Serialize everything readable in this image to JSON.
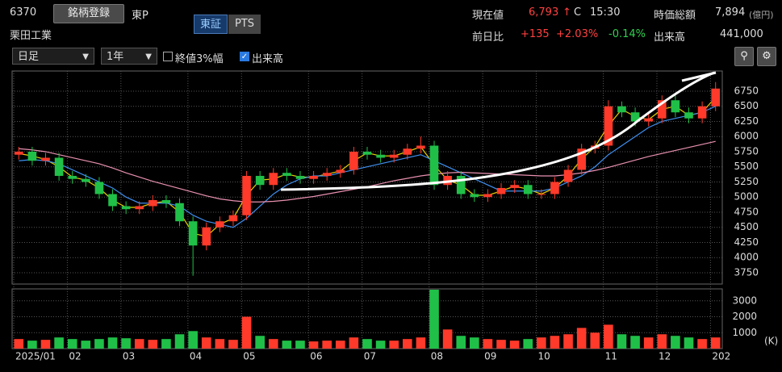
{
  "header": {
    "code": "6370",
    "register_button": "銘柄登録",
    "market": "東P",
    "exchange_tabs": [
      "東証",
      "PTS"
    ],
    "name": "栗田工業",
    "price_label": "現在値",
    "price": "6,793",
    "arrow": "↑",
    "price_flag": "C",
    "time": "15:30",
    "market_cap_label": "時価総額",
    "market_cap": "7,894",
    "market_cap_unit": "(億円)",
    "change_label": "前日比",
    "change": "+135",
    "change_pct": "+2.03%",
    "other_pct": "-0.14%",
    "volume_label": "出来高",
    "volume": "441,000"
  },
  "controls": {
    "interval": "日足",
    "period": "1年",
    "close_3pct": "終値3%幅",
    "show_volume": "出来高"
  },
  "chart_data": {
    "type": "candlestick",
    "categories": [
      "2025/01",
      null,
      null,
      null,
      "02",
      null,
      null,
      null,
      "03",
      null,
      null,
      null,
      null,
      "04",
      null,
      null,
      null,
      "05",
      null,
      null,
      null,
      null,
      "06",
      null,
      null,
      null,
      "07",
      null,
      null,
      null,
      null,
      "08",
      null,
      null,
      null,
      "09",
      null,
      null,
      null,
      "10",
      null,
      null,
      null,
      null,
      "11",
      null,
      null,
      null,
      "12",
      null,
      null,
      null,
      "202"
    ],
    "open": [
      5700,
      5750,
      5600,
      5650,
      5350,
      5300,
      5250,
      5050,
      4850,
      4800,
      4850,
      4950,
      4900,
      4600,
      4200,
      4500,
      4600,
      4700,
      5350,
      5200,
      5400,
      5350,
      5300,
      5350,
      5400,
      5450,
      5750,
      5700,
      5650,
      5700,
      5800,
      5850,
      5200,
      5350,
      5050,
      5000,
      5050,
      5150,
      5200,
      5050,
      5050,
      5250,
      5450,
      5800,
      5850,
      6500,
      6400,
      6250,
      6300,
      6600,
      6400,
      6300,
      6500
    ],
    "high": [
      5830,
      5830,
      5730,
      5730,
      5430,
      5380,
      5330,
      5130,
      4930,
      4930,
      5030,
      5030,
      4980,
      4680,
      4580,
      4680,
      4780,
      5430,
      5430,
      5480,
      5480,
      5430,
      5430,
      5480,
      5530,
      5830,
      5830,
      5780,
      5780,
      5880,
      6000,
      5930,
      5430,
      5430,
      5130,
      5130,
      5230,
      5280,
      5280,
      5130,
      5330,
      5530,
      5880,
      5930,
      6600,
      6580,
      6480,
      6380,
      6680,
      6680,
      6480,
      6580,
      6900
    ],
    "low": [
      5620,
      5520,
      5520,
      5270,
      5220,
      5170,
      4970,
      4770,
      4720,
      4720,
      4770,
      4820,
      4520,
      3700,
      4120,
      4420,
      4520,
      4620,
      5120,
      5120,
      5270,
      5220,
      5220,
      5270,
      5320,
      5370,
      5620,
      5570,
      5570,
      5620,
      5720,
      5120,
      5120,
      4970,
      4920,
      4920,
      4970,
      5070,
      4970,
      4970,
      4970,
      5170,
      5370,
      5720,
      5770,
      6320,
      6170,
      6170,
      6220,
      6320,
      6220,
      6220,
      6420
    ],
    "close": [
      5750,
      5600,
      5650,
      5350,
      5300,
      5250,
      5050,
      4850,
      4800,
      4850,
      4950,
      4900,
      4600,
      4200,
      4500,
      4600,
      4700,
      5350,
      5200,
      5400,
      5350,
      5300,
      5350,
      5400,
      5450,
      5750,
      5700,
      5650,
      5700,
      5800,
      5850,
      5200,
      5350,
      5050,
      5000,
      5050,
      5150,
      5200,
      5050,
      5050,
      5250,
      5450,
      5800,
      5850,
      6500,
      6400,
      6250,
      6300,
      6600,
      6400,
      6300,
      6500,
      6793
    ],
    "moving_averages": [
      {
        "color": "#e8d000",
        "values": [
          5720,
          5680,
          5620,
          5500,
          5330,
          5280,
          5150,
          4950,
          4830,
          4830,
          4900,
          4930,
          4750,
          4400,
          4350,
          4550,
          4650,
          5030,
          5280,
          5300,
          5380,
          5330,
          5330,
          5380,
          5430,
          5600,
          5730,
          5680,
          5680,
          5750,
          5830,
          5530,
          5280,
          5200,
          5030,
          5030,
          5100,
          5180,
          5130,
          5050,
          5150,
          5350,
          5630,
          5830,
          6180,
          6450,
          6330,
          6280,
          6450,
          6500,
          6350,
          6400,
          6650
        ]
      },
      {
        "color": "#3f8ff0",
        "values": [
          5600,
          5620,
          5600,
          5550,
          5450,
          5350,
          5250,
          5150,
          5000,
          4900,
          4900,
          4900,
          4850,
          4700,
          4600,
          4550,
          4500,
          4650,
          4850,
          5050,
          5200,
          5300,
          5350,
          5350,
          5400,
          5450,
          5500,
          5550,
          5600,
          5650,
          5700,
          5600,
          5500,
          5400,
          5300,
          5200,
          5100,
          5100,
          5100,
          5100,
          5150,
          5250,
          5350,
          5500,
          5700,
          5850,
          6000,
          6150,
          6250,
          6300,
          6350,
          6400,
          6500
        ]
      },
      {
        "color": "#e890b0",
        "values": [
          5800,
          5780,
          5750,
          5700,
          5650,
          5600,
          5550,
          5480,
          5400,
          5330,
          5260,
          5200,
          5140,
          5080,
          5020,
          4970,
          4940,
          4920,
          4920,
          4930,
          4950,
          4980,
          5010,
          5050,
          5090,
          5130,
          5170,
          5220,
          5270,
          5310,
          5350,
          5380,
          5400,
          5410,
          5400,
          5390,
          5380,
          5370,
          5360,
          5350,
          5350,
          5370,
          5400,
          5440,
          5490,
          5550,
          5610,
          5670,
          5720,
          5770,
          5820,
          5870,
          5920
        ]
      }
    ],
    "up_color": "#ff3a2a",
    "down_color": "#20c048",
    "ylim": [
      3563,
      7083
    ],
    "yticks": [
      3750,
      4000,
      4250,
      4500,
      4750,
      5000,
      5250,
      5500,
      5750,
      6000,
      6250,
      6500,
      6750
    ],
    "volume": [
      600,
      500,
      550,
      700,
      600,
      500,
      600,
      700,
      650,
      600,
      550,
      600,
      900,
      1100,
      700,
      600,
      550,
      2000,
      800,
      600,
      500,
      500,
      450,
      500,
      500,
      700,
      600,
      500,
      500,
      600,
      700,
      3700,
      1200,
      800,
      700,
      600,
      550,
      500,
      600,
      700,
      800,
      900,
      1300,
      1000,
      1500,
      900,
      800,
      700,
      900,
      800,
      700,
      600,
      700
    ],
    "volume_ylim": [
      0,
      3750
    ],
    "volume_yticks": [
      1000,
      2000,
      3000
    ],
    "volume_unit": "(K)",
    "grid": true
  }
}
